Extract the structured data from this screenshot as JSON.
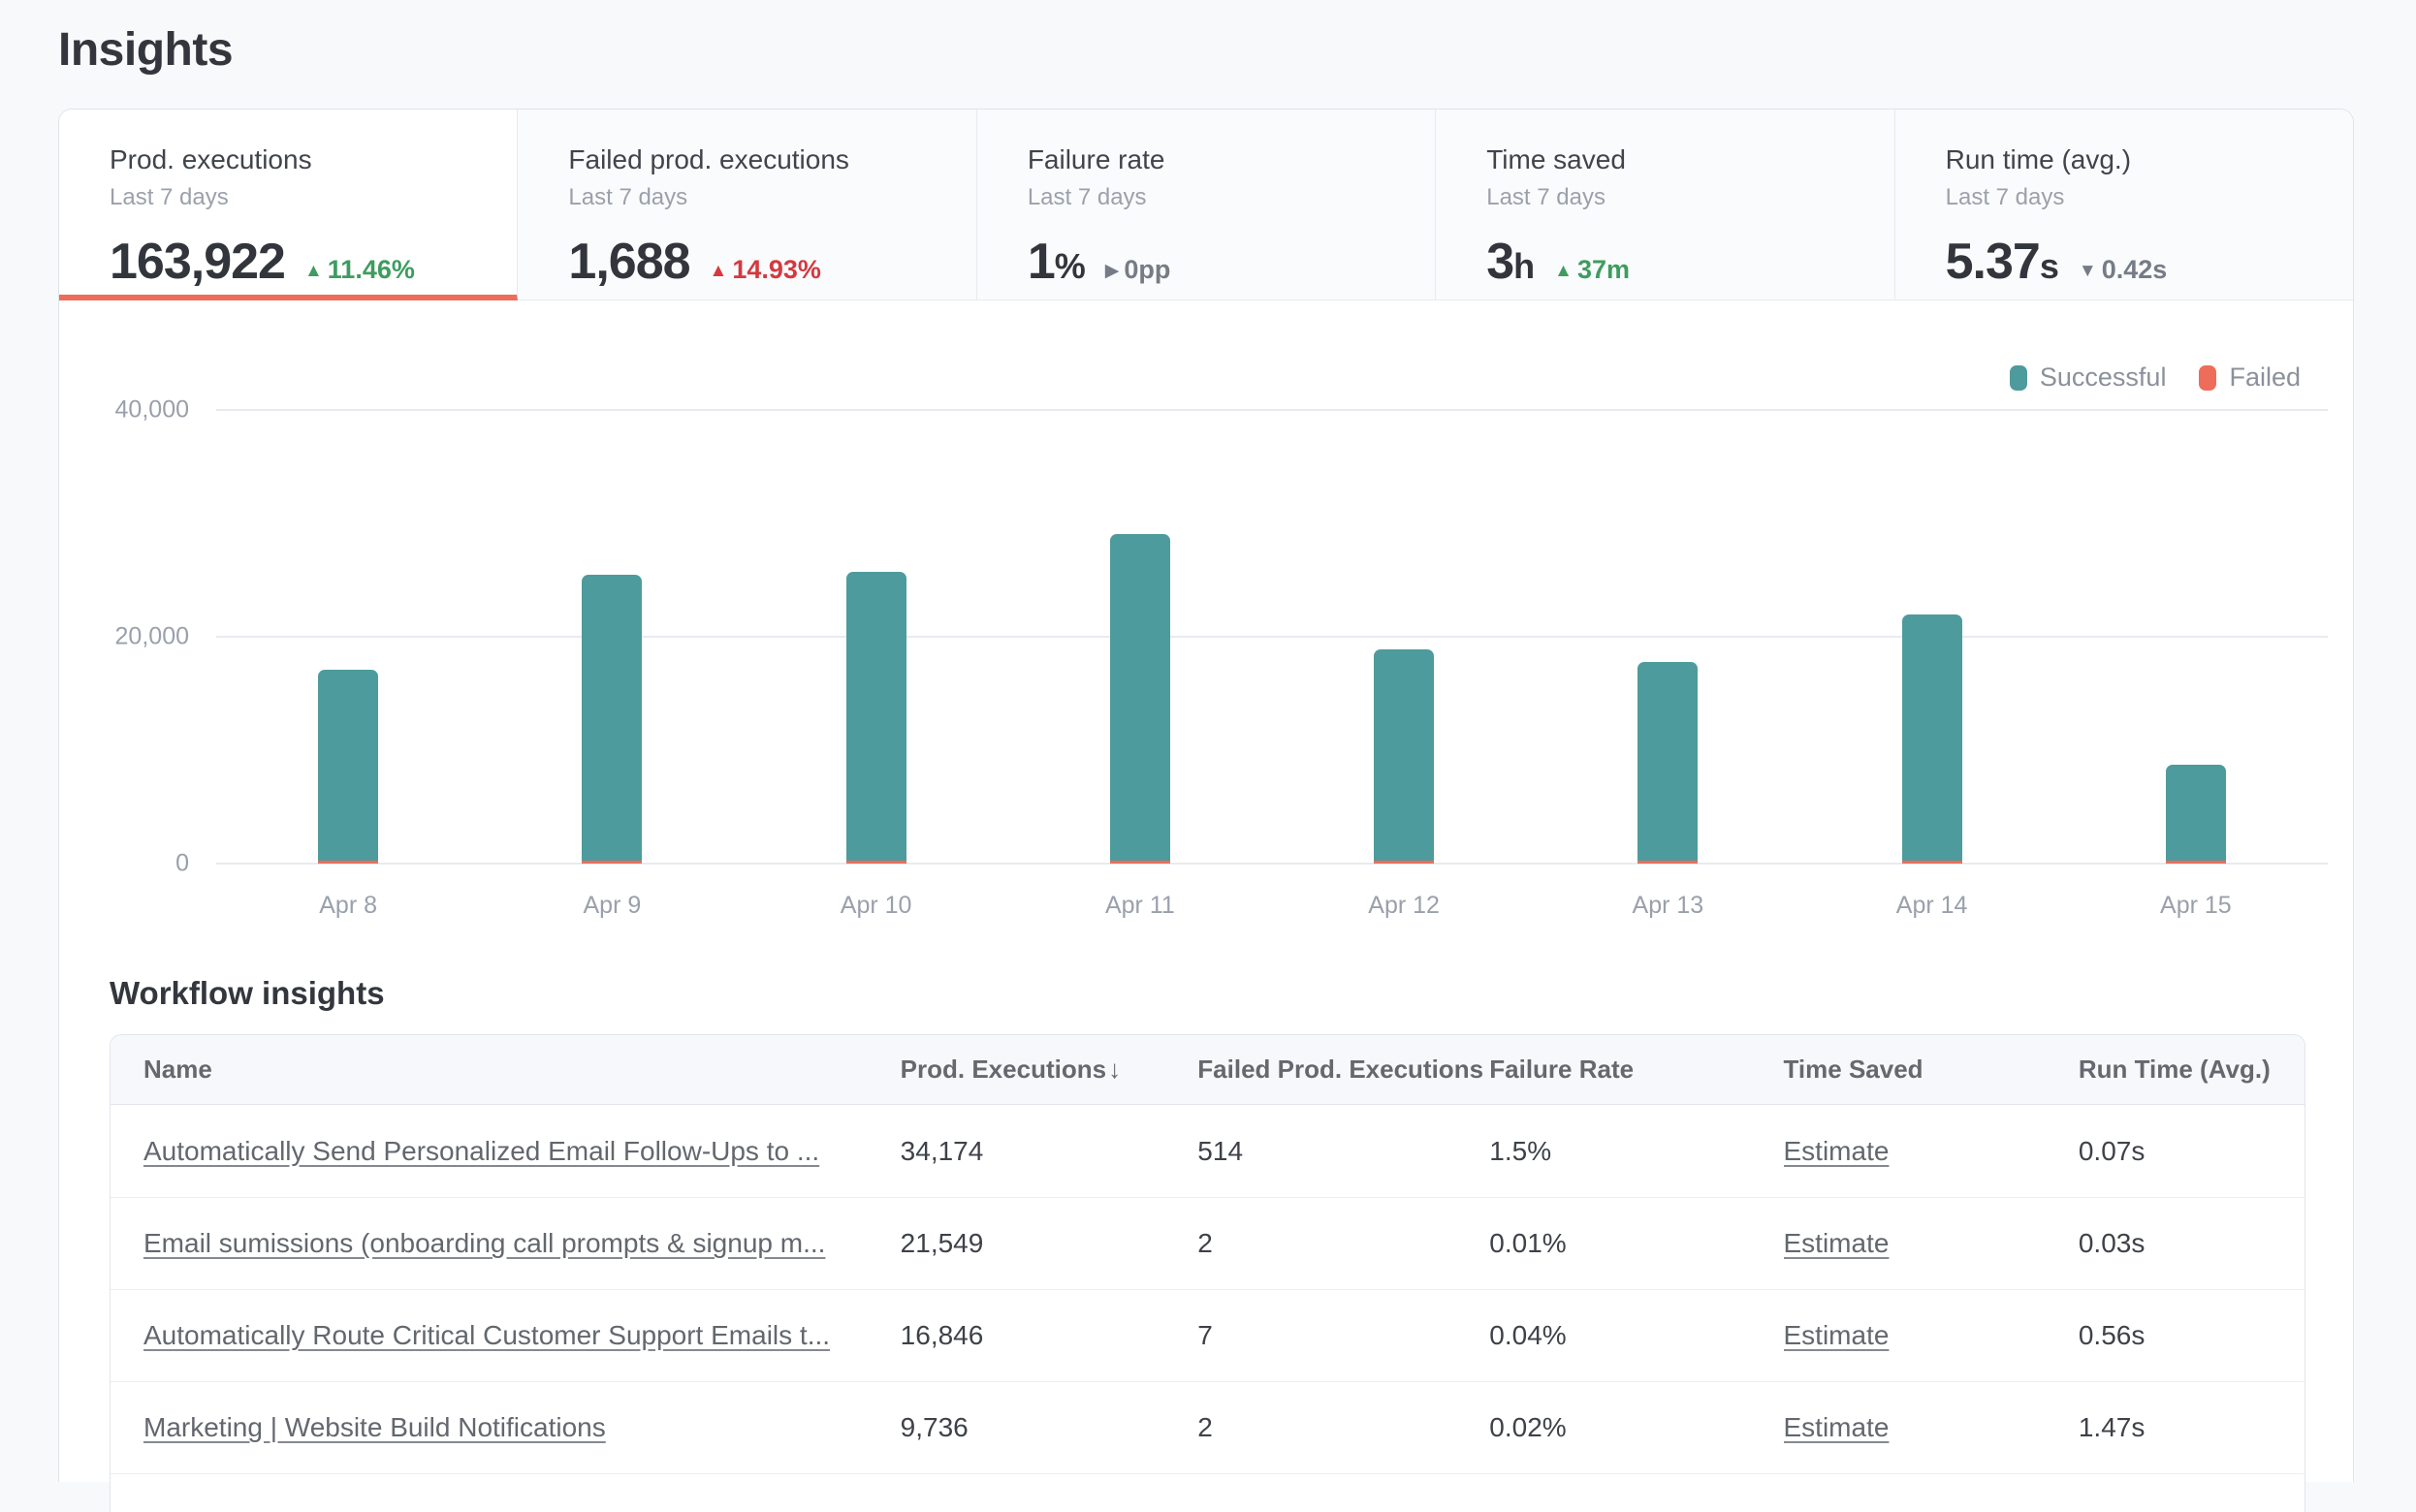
{
  "page": {
    "title": "Insights"
  },
  "colors": {
    "accent_underline": "#ed6d5a",
    "successful": "#4e9b9d",
    "failed": "#ed6d5a",
    "positive": "#3e9c5f",
    "negative": "#d5393e",
    "neutral": "#757c85"
  },
  "metric_tabs": [
    {
      "id": "prod-executions",
      "label": "Prod. executions",
      "period": "Last 7 days",
      "value": "163,922",
      "unit": "",
      "delta": {
        "direction": "up",
        "trend": "positive",
        "text": "11.46%"
      },
      "selected": true
    },
    {
      "id": "failed-prod-executions",
      "label": "Failed prod. executions",
      "period": "Last 7 days",
      "value": "1,688",
      "unit": "",
      "delta": {
        "direction": "up",
        "trend": "negative",
        "text": "14.93%"
      },
      "selected": false
    },
    {
      "id": "failure-rate",
      "label": "Failure rate",
      "period": "Last 7 days",
      "value": "1",
      "unit": "%",
      "delta": {
        "direction": "right",
        "trend": "neutral",
        "text": "0pp"
      },
      "selected": false
    },
    {
      "id": "time-saved",
      "label": "Time saved",
      "period": "Last 7 days",
      "value": "3",
      "unit": "h",
      "delta": {
        "direction": "up",
        "trend": "positive",
        "text": "37m"
      },
      "selected": false
    },
    {
      "id": "run-time-avg",
      "label": "Run time (avg.)",
      "period": "Last 7 days",
      "value": "5.37",
      "unit": "s",
      "delta": {
        "direction": "down",
        "trend": "neutral",
        "text": "0.42s"
      },
      "selected": false
    }
  ],
  "chart_data": {
    "type": "bar",
    "stacked": true,
    "categories": [
      "Apr 8",
      "Apr 9",
      "Apr 10",
      "Apr 11",
      "Apr 12",
      "Apr 13",
      "Apr 14",
      "Apr 15"
    ],
    "series": [
      {
        "name": "Successful",
        "color": "#4e9b9d",
        "values": [
          16850,
          25250,
          25450,
          28800,
          18650,
          17500,
          21700,
          8500
        ]
      },
      {
        "name": "Failed",
        "color": "#ed6d5a",
        "values": [
          210,
          210,
          210,
          210,
          210,
          210,
          210,
          210
        ]
      }
    ],
    "title": "",
    "xlabel": "",
    "ylabel": "",
    "ylim": [
      0,
      40000
    ],
    "yticks": [
      {
        "value": 0,
        "label": "0"
      },
      {
        "value": 20000,
        "label": "20,000"
      },
      {
        "value": 40000,
        "label": "40,000"
      }
    ],
    "grid": true,
    "legend_position": "top-right",
    "legend": [
      {
        "label": "Successful",
        "color": "#4e9b9d"
      },
      {
        "label": "Failed",
        "color": "#ed6d5a"
      }
    ]
  },
  "workflow_insights": {
    "heading": "Workflow insights",
    "columns": [
      {
        "label": "Name",
        "sort": null
      },
      {
        "label": "Prod. Executions",
        "sort": "desc"
      },
      {
        "label": "Failed Prod. Executions",
        "sort": null
      },
      {
        "label": "Failure Rate",
        "sort": null
      },
      {
        "label": "Time Saved",
        "sort": null
      },
      {
        "label": "Run Time (Avg.)",
        "sort": null
      }
    ],
    "rows": [
      {
        "name": "Automatically Send Personalized Email Follow-Ups to ...",
        "prod_executions": "34,174",
        "failed_prod_executions": "514",
        "failure_rate": "1.5%",
        "time_saved": "Estimate",
        "run_time_avg": "0.07s"
      },
      {
        "name": "Email sumissions (onboarding call prompts & signup m...",
        "prod_executions": "21,549",
        "failed_prod_executions": "2",
        "failure_rate": "0.01%",
        "time_saved": "Estimate",
        "run_time_avg": "0.03s"
      },
      {
        "name": "Automatically Route Critical Customer Support Emails t...",
        "prod_executions": "16,846",
        "failed_prod_executions": "7",
        "failure_rate": "0.04%",
        "time_saved": "Estimate",
        "run_time_avg": "0.56s"
      },
      {
        "name": "Marketing | Website Build Notifications",
        "prod_executions": "9,736",
        "failed_prod_executions": "2",
        "failure_rate": "0.02%",
        "time_saved": "Estimate",
        "run_time_avg": "1.47s"
      }
    ]
  }
}
